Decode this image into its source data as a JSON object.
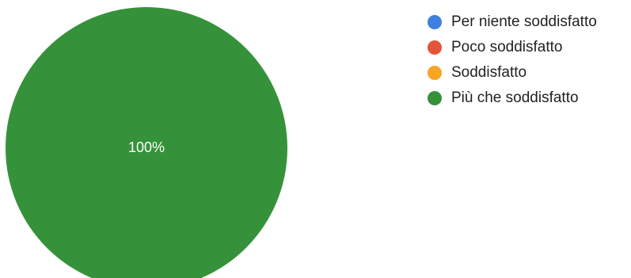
{
  "chart_data": {
    "type": "pie",
    "categories": [
      "Per niente soddisfatto",
      "Poco soddisfatto",
      "Soddisfatto",
      "Più che soddisfatto"
    ],
    "values": [
      0,
      0,
      0,
      100
    ],
    "data_labels": [
      "",
      "",
      "",
      "100%"
    ],
    "colors": [
      "#3f7fe0",
      "#e4543b",
      "#f6a623",
      "#35923a"
    ],
    "legend_position": "right"
  }
}
